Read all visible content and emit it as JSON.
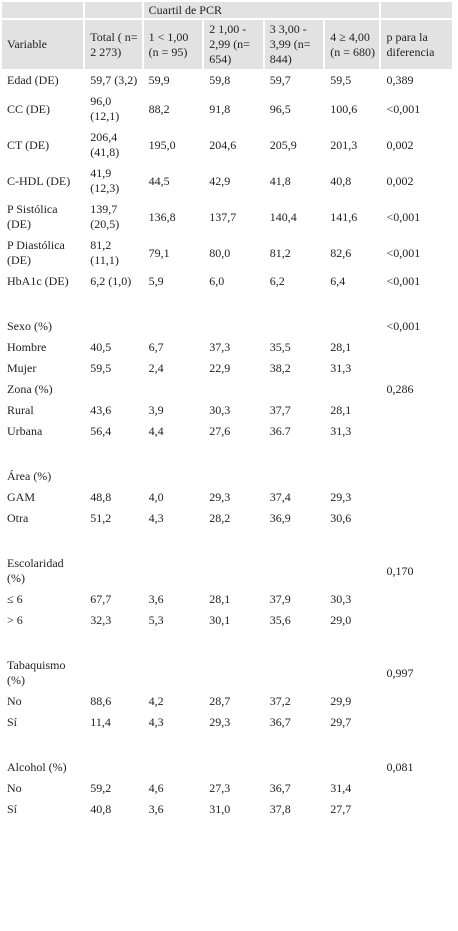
{
  "table": {
    "group_header": "Cuartil de PCR",
    "headers": {
      "variable": "Variable",
      "total": "Total  ( n= 2 273)",
      "q1": "1 < 1,00 (n = 95)",
      "q2": "2 1,00 - 2,99 (n= 654)",
      "q3": "3 3,00 - 3,99 (n= 844)",
      "q4": "4 ≥ 4,00 (n = 680)",
      "p": "p para la diferencia"
    },
    "rows": [
      {
        "label": "Edad (DE)",
        "total": "59,7 (3,2)",
        "q1": "59,9",
        "q2": "59,8",
        "q3": "59,7",
        "q4": "59,5",
        "p": "0,389"
      },
      {
        "label": "CC (DE)",
        "total": "96,0 (12,1)",
        "q1": "88,2",
        "q2": "91,8",
        "q3": "96,5",
        "q4": "100,6",
        "p": "<0,001"
      },
      {
        "label": "CT (DE)",
        "total": "206,4 (41,8)",
        "q1": "195,0",
        "q2": "204,6",
        "q3": "205,9",
        "q4": "201,3",
        "p": "0,002"
      },
      {
        "label": "C-HDL (DE)",
        "total": "41,9 (12,3)",
        "q1": "44,5",
        "q2": "42,9",
        "q3": "41,8",
        "q4": "40,8",
        "p": "0,002"
      },
      {
        "label": "P Sistólica (DE)",
        "total": "139,7 (20,5)",
        "q1": "136,8",
        "q2": "137,7",
        "q3": "140,4",
        "q4": "141,6",
        "p": "<0,001"
      },
      {
        "label": "P Diastólica (DE)",
        "total": "81,2 (11,1)",
        "q1": "79,1",
        "q2": "80,0",
        "q3": "81,2",
        "q4": "82,6",
        "p": "<0,001"
      },
      {
        "label": "HbA1c (DE)",
        "total": "6,2 (1,0)",
        "q1": "5,9",
        "q2": "6,0",
        "q3": "6,2",
        "q4": "6,4",
        "p": "<0,001"
      },
      {
        "label": "",
        "total": "",
        "q1": "",
        "q2": "",
        "q3": "",
        "q4": "",
        "p": ""
      },
      {
        "label": "Sexo (%)",
        "total": "",
        "q1": "",
        "q2": "",
        "q3": "",
        "q4": "",
        "p": "<0,001"
      },
      {
        "label": "Hombre",
        "total": "40,5",
        "q1": "6,7",
        "q2": "37,3",
        "q3": "35,5",
        "q4": "28,1",
        "p": ""
      },
      {
        "label": "Mujer",
        "total": "59,5",
        "q1": "2,4",
        "q2": "22,9",
        "q3": "38,2",
        "q4": "31,3",
        "p": ""
      },
      {
        "label": "Zona (%)",
        "total": "",
        "q1": "",
        "q2": "",
        "q3": "",
        "q4": "",
        "p": "0,286"
      },
      {
        "label": "Rural",
        "total": "43,6",
        "q1": "3,9",
        "q2": "30,3",
        "q3": "37,7",
        "q4": "28,1",
        "p": ""
      },
      {
        "label": "Urbana",
        "total": "56,4",
        "q1": "4,4",
        "q2": "27,6",
        "q3": "36.7",
        "q4": "31,3",
        "p": ""
      },
      {
        "label": "",
        "total": "",
        "q1": "",
        "q2": "",
        "q3": "",
        "q4": "",
        "p": ""
      },
      {
        "label": "Área (%)",
        "total": "",
        "q1": "",
        "q2": "",
        "q3": "",
        "q4": "",
        "p": ""
      },
      {
        "label": "GAM",
        "total": "48,8",
        "q1": "4,0",
        "q2": "29,3",
        "q3": "37,4",
        "q4": "29,3",
        "p": ""
      },
      {
        "label": "Otra",
        "total": "51,2",
        "q1": "4,3",
        "q2": "28,2",
        "q3": "36,9",
        "q4": "30,6",
        "p": ""
      },
      {
        "label": "",
        "total": "",
        "q1": "",
        "q2": "",
        "q3": "",
        "q4": "",
        "p": ""
      },
      {
        "label": "Escolaridad (%)",
        "total": "",
        "q1": "",
        "q2": "",
        "q3": "",
        "q4": "",
        "p": "0,170"
      },
      {
        "label": "≤ 6",
        "total": "67,7",
        "q1": "3,6",
        "q2": "28,1",
        "q3": "37,9",
        "q4": "30,3",
        "p": ""
      },
      {
        "label": "> 6",
        "total": "32,3",
        "q1": "5,3",
        "q2": "30,1",
        "q3": "35,6",
        "q4": "29,0",
        "p": ""
      },
      {
        "label": "",
        "total": "",
        "q1": "",
        "q2": "",
        "q3": "",
        "q4": "",
        "p": ""
      },
      {
        "label": "Tabaquismo (%)",
        "total": "",
        "q1": "",
        "q2": "",
        "q3": "",
        "q4": "",
        "p": "0,997"
      },
      {
        "label": "No",
        "total": "88,6",
        "q1": "4,2",
        "q2": "28,7",
        "q3": "37,2",
        "q4": "29,9",
        "p": ""
      },
      {
        "label": "Sí",
        "total": "11,4",
        "q1": "4,3",
        "q2": "29,3",
        "q3": "36,7",
        "q4": "29,7",
        "p": ""
      },
      {
        "label": "",
        "total": "",
        "q1": "",
        "q2": "",
        "q3": "",
        "q4": "",
        "p": ""
      },
      {
        "label": "Alcohol (%)",
        "total": "",
        "q1": "",
        "q2": "",
        "q3": "",
        "q4": "",
        "p": "0,081"
      },
      {
        "label": "No",
        "total": "59,2",
        "q1": "4,6",
        "q2": "27,3",
        "q3": "36,7",
        "q4": "31,4",
        "p": ""
      },
      {
        "label": "Sí",
        "total": "40,8",
        "q1": "3,6",
        "q2": "31,0",
        "q3": "37,8",
        "q4": "27,7",
        "p": ""
      }
    ]
  }
}
